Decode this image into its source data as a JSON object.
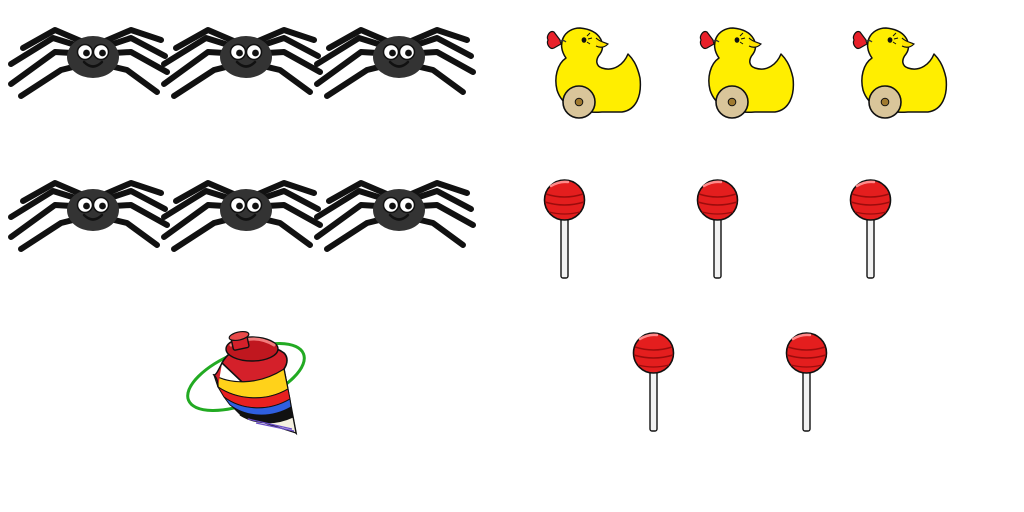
{
  "groups": [
    {
      "name": "spiders",
      "icon": "spider-icon",
      "count": 6
    },
    {
      "name": "toy-ducks",
      "icon": "toy-duck-icon",
      "count": 3
    },
    {
      "name": "lollipops",
      "icon": "lollipop-icon",
      "count": 5
    },
    {
      "name": "spinning-tops",
      "icon": "spinning-top-icon",
      "count": 1
    }
  ],
  "colors": {
    "spider_body": "#333333",
    "duck_body": "#ffee00",
    "duck_bow": "#e8202a",
    "duck_wheel": "#d9c59a",
    "lollipop_candy": "#e41e1e",
    "lollipop_stick": "#f2f2f2",
    "top_ring": "#22aa22"
  }
}
